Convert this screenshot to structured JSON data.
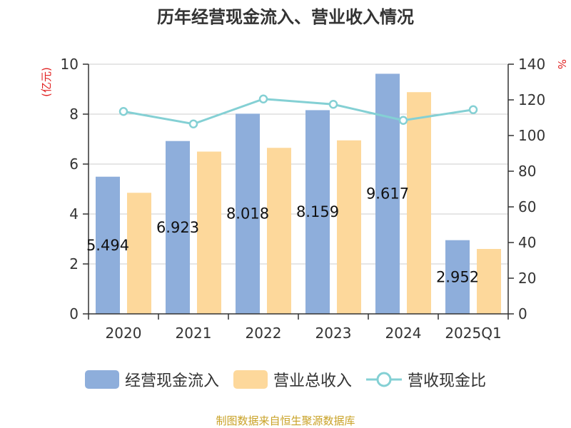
{
  "chart_data": {
    "type": "bar",
    "title": "历年经营现金流入、营业收入情况",
    "categories": [
      "2020",
      "2021",
      "2022",
      "2023",
      "2024",
      "2025Q1"
    ],
    "series": [
      {
        "name": "经营现金流入",
        "type": "bar",
        "axis": "left",
        "color": "#8eaedb",
        "values": [
          5.494,
          6.923,
          8.018,
          8.159,
          9.617,
          2.952
        ],
        "data_labels": [
          "5.494",
          "6.923",
          "8.018",
          "8.159",
          "9.617",
          "2.952"
        ]
      },
      {
        "name": "营业总收入",
        "type": "bar",
        "axis": "left",
        "color": "#fdd89b",
        "values": [
          4.85,
          6.5,
          6.65,
          6.95,
          8.88,
          2.6
        ]
      },
      {
        "name": "营收现金比",
        "type": "line",
        "axis": "right",
        "color": "#84d0d4",
        "values": [
          113.5,
          106.5,
          120.5,
          117.5,
          108.5,
          114.5
        ]
      }
    ],
    "ylabel": "(亿元)",
    "ylabel_right": "%",
    "ylim": [
      0,
      10
    ],
    "ylim_right": [
      0,
      140
    ],
    "yticks": [
      "0",
      "2",
      "4",
      "6",
      "8",
      "10"
    ],
    "yticks_right": [
      "0",
      "20",
      "40",
      "60",
      "80",
      "100",
      "120",
      "140"
    ],
    "grid": true,
    "legend_position": "bottom",
    "source_note": "制图数据来自恒生聚源数据库"
  }
}
